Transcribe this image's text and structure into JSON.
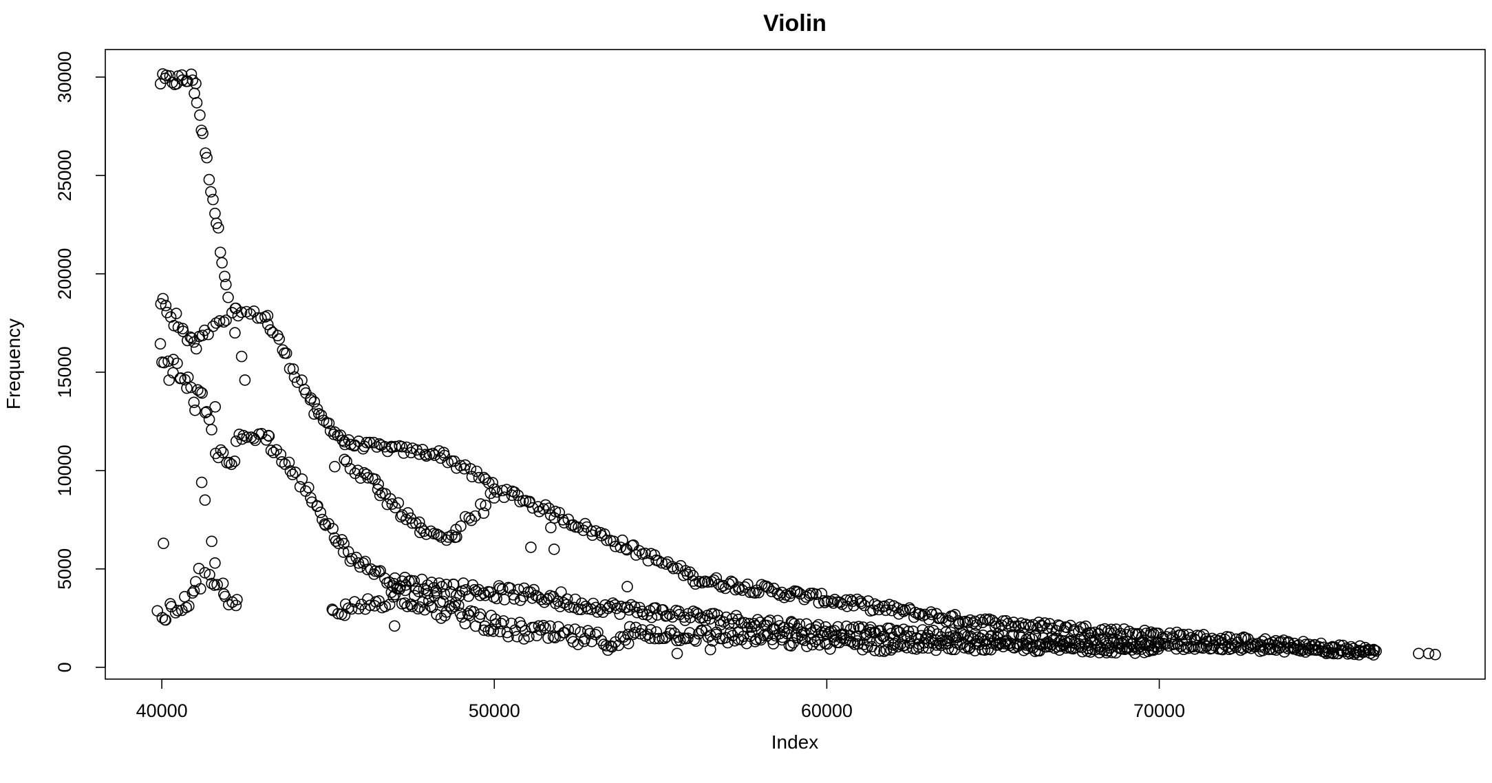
{
  "chart_data": {
    "type": "scatter",
    "title": "Violin",
    "xlabel": "Index",
    "ylabel": "Frequency",
    "xlim": [
      38300,
      79800
    ],
    "ylim": [
      -600,
      31400
    ],
    "xticks": [
      40000,
      50000,
      60000,
      70000
    ],
    "yticks": [
      0,
      5000,
      10000,
      15000,
      20000,
      25000,
      30000
    ],
    "grid": false,
    "legend": "none",
    "marker": "open-circle",
    "color": "#000000",
    "segments": [
      {
        "x0": 39950,
        "x1": 41000,
        "y0": 29800,
        "y1": 29900,
        "n": 16,
        "noise": 350
      },
      {
        "x0": 41000,
        "x1": 42000,
        "y0": 29300,
        "y1": 19000,
        "n": 18,
        "noise": 350
      },
      {
        "x0": 39950,
        "x1": 41000,
        "y0": 18500,
        "y1": 16200,
        "n": 14,
        "noise": 600
      },
      {
        "x0": 41000,
        "x1": 42200,
        "y0": 16500,
        "y1": 18000,
        "n": 12,
        "noise": 250
      },
      {
        "x0": 42200,
        "x1": 43200,
        "y0": 18100,
        "y1": 17800,
        "n": 10,
        "noise": 200
      },
      {
        "x0": 43200,
        "x1": 44600,
        "y0": 17500,
        "y1": 13200,
        "n": 18,
        "noise": 300
      },
      {
        "x0": 44600,
        "x1": 45500,
        "y0": 13000,
        "y1": 11500,
        "n": 14,
        "noise": 250
      },
      {
        "x0": 45500,
        "x1": 48500,
        "y0": 11400,
        "y1": 10800,
        "n": 36,
        "noise": 200
      },
      {
        "x0": 48500,
        "x1": 50500,
        "y0": 10700,
        "y1": 8700,
        "n": 22,
        "noise": 250
      },
      {
        "x0": 50500,
        "x1": 56000,
        "y0": 8800,
        "y1": 4600,
        "n": 65,
        "noise": 250
      },
      {
        "x0": 56000,
        "x1": 64000,
        "y0": 4500,
        "y1": 2400,
        "n": 110,
        "noise": 250
      },
      {
        "x0": 64000,
        "x1": 76500,
        "y0": 2400,
        "y1": 850,
        "n": 170,
        "noise": 200
      },
      {
        "x0": 39950,
        "x1": 41600,
        "y0": 16000,
        "y1": 12500,
        "n": 24,
        "noise": 800
      },
      {
        "x0": 41600,
        "x1": 42200,
        "y0": 11000,
        "y1": 10400,
        "n": 8,
        "noise": 300
      },
      {
        "x0": 42200,
        "x1": 43200,
        "y0": 11600,
        "y1": 11800,
        "n": 12,
        "noise": 250
      },
      {
        "x0": 43200,
        "x1": 44800,
        "y0": 11500,
        "y1": 8000,
        "n": 20,
        "noise": 350
      },
      {
        "x0": 44800,
        "x1": 45500,
        "y0": 7500,
        "y1": 6200,
        "n": 10,
        "noise": 250
      },
      {
        "x0": 45500,
        "x1": 47000,
        "y0": 5800,
        "y1": 4300,
        "n": 20,
        "noise": 250
      },
      {
        "x0": 47000,
        "x1": 52000,
        "y0": 4300,
        "y1": 3500,
        "n": 70,
        "noise": 350
      },
      {
        "x0": 52000,
        "x1": 60000,
        "y0": 3300,
        "y1": 1900,
        "n": 110,
        "noise": 300
      },
      {
        "x0": 60000,
        "x1": 70000,
        "y0": 1900,
        "y1": 1100,
        "n": 150,
        "noise": 250
      },
      {
        "x0": 70000,
        "x1": 76500,
        "y0": 1100,
        "y1": 750,
        "n": 90,
        "noise": 150
      },
      {
        "x0": 45500,
        "x1": 46500,
        "y0": 10400,
        "y1": 9200,
        "n": 12,
        "noise": 250
      },
      {
        "x0": 46500,
        "x1": 47800,
        "y0": 9000,
        "y1": 7000,
        "n": 18,
        "noise": 300
      },
      {
        "x0": 47800,
        "x1": 48800,
        "y0": 6800,
        "y1": 6500,
        "n": 12,
        "noise": 200
      },
      {
        "x0": 48800,
        "x1": 50000,
        "y0": 6800,
        "y1": 8700,
        "n": 12,
        "noise": 350
      },
      {
        "x0": 39900,
        "x1": 41000,
        "y0": 2500,
        "y1": 3600,
        "n": 14,
        "noise": 400
      },
      {
        "x0": 41000,
        "x1": 41900,
        "y0": 4500,
        "y1": 3800,
        "n": 10,
        "noise": 600
      },
      {
        "x0": 41900,
        "x1": 42300,
        "y0": 3500,
        "y1": 3300,
        "n": 5,
        "noise": 300
      },
      {
        "x0": 45100,
        "x1": 47000,
        "y0": 2600,
        "y1": 3600,
        "n": 22,
        "noise": 400
      },
      {
        "x0": 47000,
        "x1": 50000,
        "y0": 3800,
        "y1": 2200,
        "n": 45,
        "noise": 500
      },
      {
        "x0": 50000,
        "x1": 54000,
        "y0": 2000,
        "y1": 1200,
        "n": 55,
        "noise": 450
      },
      {
        "x0": 54000,
        "x1": 62000,
        "y0": 1800,
        "y1": 1100,
        "n": 110,
        "noise": 350
      },
      {
        "x0": 62000,
        "x1": 70000,
        "y0": 1100,
        "y1": 900,
        "n": 110,
        "noise": 200
      }
    ],
    "scattered": [
      [
        40050,
        6300
      ],
      [
        41200,
        9400
      ],
      [
        41300,
        8500
      ],
      [
        41500,
        6400
      ],
      [
        41600,
        5300
      ],
      [
        42200,
        17000
      ],
      [
        42400,
        15800
      ],
      [
        42500,
        14600
      ],
      [
        45200,
        10200
      ],
      [
        47000,
        2100
      ],
      [
        48400,
        2500
      ],
      [
        51100,
        6100
      ],
      [
        51800,
        6000
      ],
      [
        51700,
        7100
      ],
      [
        54000,
        4100
      ],
      [
        55500,
        700
      ],
      [
        56500,
        900
      ],
      [
        61300,
        1900
      ],
      [
        77800,
        700
      ],
      [
        78100,
        700
      ],
      [
        78300,
        650
      ]
    ]
  }
}
